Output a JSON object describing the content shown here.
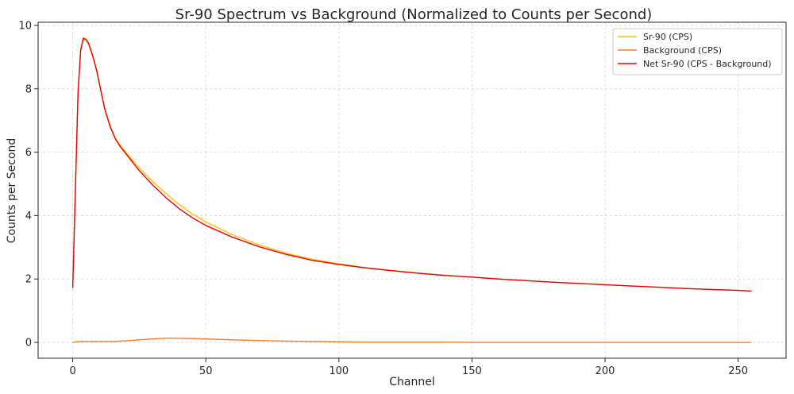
{
  "chart_data": {
    "type": "line",
    "title": "Sr-90 Spectrum vs Background (Normalized to Counts per Second)",
    "xlabel": "Channel",
    "ylabel": "Counts per Second",
    "xlim": [
      -13,
      268
    ],
    "ylim": [
      -0.5,
      10.1
    ],
    "xticks": [
      0,
      50,
      100,
      150,
      200,
      250
    ],
    "yticks": [
      0,
      2,
      4,
      6,
      8,
      10
    ],
    "grid": true,
    "legend_position": "top-right",
    "x": [
      0,
      1,
      2,
      3,
      4,
      5,
      6,
      7,
      8,
      9,
      10,
      12,
      14,
      16,
      18,
      20,
      25,
      30,
      35,
      40,
      45,
      50,
      60,
      70,
      80,
      90,
      100,
      110,
      120,
      130,
      140,
      150,
      160,
      170,
      180,
      190,
      200,
      210,
      220,
      230,
      240,
      250,
      255
    ],
    "series": [
      {
        "name": "Sr-90 (CPS)",
        "color": "#ffc000",
        "values": [
          1.72,
          4.8,
          7.9,
          9.25,
          9.62,
          9.58,
          9.45,
          9.2,
          8.92,
          8.6,
          8.2,
          7.4,
          6.85,
          6.45,
          6.2,
          6.0,
          5.5,
          5.08,
          4.7,
          4.35,
          4.05,
          3.8,
          3.4,
          3.08,
          2.82,
          2.62,
          2.48,
          2.36,
          2.27,
          2.19,
          2.12,
          2.06,
          2.0,
          1.95,
          1.9,
          1.86,
          1.82,
          1.78,
          1.74,
          1.7,
          1.67,
          1.64,
          1.62
        ]
      },
      {
        "name": "Background (CPS)",
        "color": "#f07d2a",
        "values": [
          0.0,
          0.01,
          0.02,
          0.03,
          0.03,
          0.03,
          0.03,
          0.03,
          0.03,
          0.03,
          0.03,
          0.03,
          0.03,
          0.03,
          0.04,
          0.05,
          0.08,
          0.11,
          0.13,
          0.13,
          0.12,
          0.11,
          0.08,
          0.06,
          0.04,
          0.03,
          0.02,
          0.01,
          0.01,
          0.01,
          0.01,
          0.0,
          0.0,
          0.0,
          0.0,
          0.0,
          0.0,
          0.0,
          0.0,
          0.0,
          0.0,
          0.0,
          0.0
        ]
      },
      {
        "name": "Net Sr-90 (CPS - Background)",
        "color": "#e8000b",
        "values": [
          1.72,
          4.79,
          7.88,
          9.22,
          9.59,
          9.55,
          9.42,
          9.17,
          8.89,
          8.57,
          8.17,
          7.37,
          6.82,
          6.42,
          6.16,
          5.95,
          5.42,
          4.97,
          4.57,
          4.22,
          3.93,
          3.69,
          3.32,
          3.02,
          2.78,
          2.59,
          2.46,
          2.35,
          2.26,
          2.18,
          2.11,
          2.06,
          2.0,
          1.95,
          1.9,
          1.86,
          1.82,
          1.78,
          1.74,
          1.7,
          1.67,
          1.64,
          1.62
        ]
      }
    ]
  }
}
